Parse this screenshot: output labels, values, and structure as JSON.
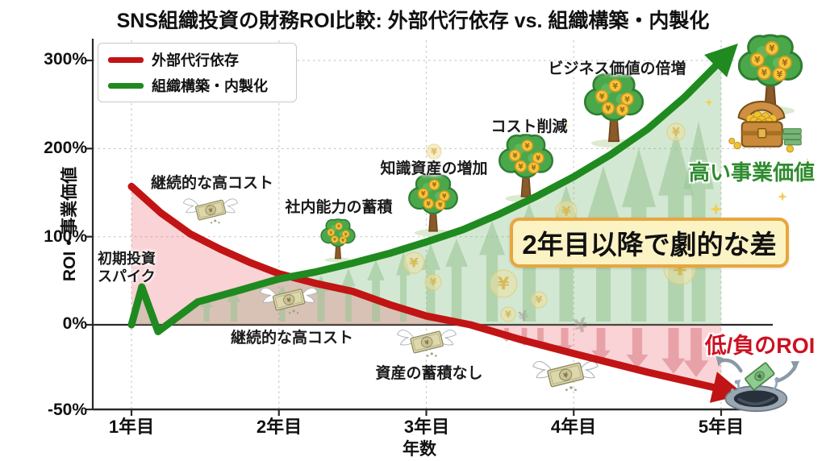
{
  "title": "SNS組織投資の財務ROI比較: 外部代行依存 vs. 組織構築・内製化",
  "legend": {
    "items": [
      {
        "label": "外部代行依存",
        "color": "#c11414"
      },
      {
        "label": "組織構築・内製化",
        "color": "#1f8a1f"
      }
    ]
  },
  "axes": {
    "y_label": "ROI・事業価値",
    "x_label": "年数",
    "y_ticks": [
      "300%",
      "200%",
      "100%",
      "0%",
      "-50%"
    ],
    "x_ticks": [
      "1年目",
      "2年目",
      "3年目",
      "4年目",
      "5年目"
    ]
  },
  "annotations": {
    "initial_spike": "初期投資スパイク",
    "high_cost_top": "継続的な高コスト",
    "high_cost_bottom": "継続的な高コスト",
    "internal_capability": "社内能力の蓄積",
    "knowledge_assets": "知識資産の増加",
    "cost_reduction": "コスト削減",
    "business_value_double": "ビジネス価値の倍増",
    "no_assets": "資産の蓄積なし",
    "dramatic_gap": "2年目以降で劇的な差",
    "high_business_value": "高い事業価値",
    "low_negative_roi": "低/負のROI"
  },
  "colors": {
    "red_line": "#c11414",
    "green_line": "#1f8a1f",
    "pink_fill": "rgba(233,85,95,0.26)",
    "green_fill": "rgba(108,178,108,0.30)",
    "highlight_bg": "#fcf3c5",
    "highlight_border": "#e8a63c",
    "high_value_text": "#2e8b2e",
    "negative_roi_text": "#cc1122"
  },
  "chart_data": {
    "type": "line",
    "title": "SNS組織投資の財務ROI比較: 外部代行依存 vs. 組織構築・内製化",
    "xlabel": "年数",
    "ylabel": "ROI・事業価値",
    "x_tick_labels": [
      "1年目",
      "2年目",
      "3年目",
      "4年目",
      "5年目"
    ],
    "x_tick_years": [
      1,
      2,
      3,
      4,
      5
    ],
    "y_tick_percents": [
      300,
      200,
      100,
      0,
      -50
    ],
    "ylim": [
      -50,
      320
    ],
    "grid": true,
    "legend_position": "upper-left",
    "series": [
      {
        "name": "外部代行依存",
        "color": "#c11414",
        "fill": "rgba(233,85,95,0.26)",
        "arrow_end": true,
        "points": [
          [
            1,
            157
          ],
          [
            1.2,
            127
          ],
          [
            1.4,
            103
          ],
          [
            1.6,
            86
          ],
          [
            1.8,
            71
          ],
          [
            2,
            58
          ],
          [
            2.25,
            47
          ],
          [
            2.5,
            38
          ],
          [
            2.75,
            23
          ],
          [
            3,
            10
          ],
          [
            3.3,
            0
          ],
          [
            3.65,
            -9
          ],
          [
            4,
            -17
          ],
          [
            4.5,
            -28
          ],
          [
            5,
            -38
          ]
        ]
      },
      {
        "name": "組織構築・内製化",
        "color": "#1f8a1f",
        "fill": "rgba(108,178,108,0.30)",
        "arrow_end": true,
        "points": [
          [
            1,
            0
          ],
          [
            1.07,
            43
          ],
          [
            1.18,
            -4
          ],
          [
            1.45,
            26
          ],
          [
            1.75,
            40
          ],
          [
            2,
            52
          ],
          [
            2.25,
            60
          ],
          [
            2.5,
            70
          ],
          [
            2.75,
            81
          ],
          [
            3,
            94
          ],
          [
            3.25,
            108
          ],
          [
            3.5,
            126
          ],
          [
            3.75,
            146
          ],
          [
            4,
            168
          ],
          [
            4.25,
            193
          ],
          [
            4.5,
            222
          ],
          [
            4.75,
            258
          ],
          [
            5,
            300
          ]
        ]
      }
    ]
  }
}
